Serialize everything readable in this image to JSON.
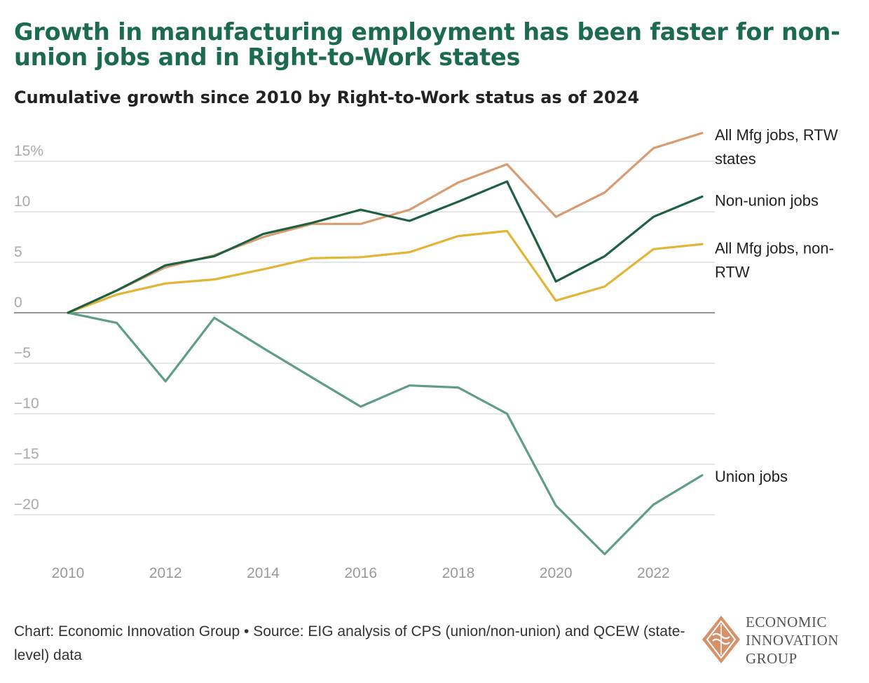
{
  "title": "Growth in manufacturing employment has been faster for non-union jobs and in Right-to-Work states",
  "subtitle": "Cumulative growth since 2010 by Right-to-Work status as of 2024",
  "footer": {
    "credit": "Chart: Economic Innovation Group",
    "separator": " • ",
    "source": "Source: EIG analysis of CPS (union/non-union) and QCEW (state-level) data"
  },
  "logo": {
    "line1": "ECONOMIC",
    "line2": "INNOVATION",
    "line3": "GROUP",
    "colors": {
      "mark": "#d4916a"
    }
  },
  "chart_data": {
    "type": "line",
    "title": "Cumulative growth since 2010 by Right-to-Work status as of 2024",
    "xlabel": "",
    "ylabel": "",
    "x": [
      2010,
      2011,
      2012,
      2013,
      2014,
      2015,
      2016,
      2017,
      2018,
      2019,
      2020,
      2021,
      2022,
      2023
    ],
    "xlim": [
      2010,
      2023
    ],
    "ylim": [
      -24,
      18
    ],
    "x_ticks": [
      {
        "value": 2010,
        "label": "2010"
      },
      {
        "value": 2012,
        "label": "2012"
      },
      {
        "value": 2014,
        "label": "2014"
      },
      {
        "value": 2016,
        "label": "2016"
      },
      {
        "value": 2018,
        "label": "2018"
      },
      {
        "value": 2020,
        "label": "2020"
      },
      {
        "value": 2022,
        "label": "2022"
      }
    ],
    "y_ticks": [
      {
        "value": 15,
        "label": "15%"
      },
      {
        "value": 10,
        "label": "10"
      },
      {
        "value": 5,
        "label": "5"
      },
      {
        "value": 0,
        "label": "0"
      },
      {
        "value": -5,
        "label": "−5"
      },
      {
        "value": -10,
        "label": "−10"
      },
      {
        "value": -15,
        "label": "−15"
      },
      {
        "value": -20,
        "label": "−20"
      }
    ],
    "grid": true,
    "legend": "direct labels at right end of lines",
    "series": [
      {
        "name": "All Mfg jobs, RTW states",
        "label_lines": [
          "All Mfg jobs, RTW",
          "states"
        ],
        "color": "#d89c72",
        "values": [
          0,
          2.2,
          4.5,
          5.7,
          7.5,
          8.8,
          8.8,
          10.2,
          12.9,
          14.7,
          9.5,
          11.9,
          16.3,
          17.8
        ],
        "label_value": 17.7
      },
      {
        "name": "Non-union jobs",
        "label_lines": [
          "Non-union jobs"
        ],
        "color": "#1d6042",
        "values": [
          0,
          2.2,
          4.7,
          5.6,
          7.8,
          8.9,
          10.2,
          9.1,
          11.0,
          13.0,
          3.1,
          5.6,
          9.5,
          11.5
        ],
        "label_value": 11.2
      },
      {
        "name": "All Mfg jobs, non-RTW",
        "label_lines": [
          "All Mfg jobs, non-",
          "RTW"
        ],
        "color": "#e2b536",
        "values": [
          0,
          1.8,
          2.9,
          3.3,
          4.3,
          5.4,
          5.5,
          6.0,
          7.6,
          8.1,
          1.2,
          2.6,
          6.3,
          6.8
        ],
        "label_value": 6.5
      },
      {
        "name": "Union jobs",
        "label_lines": [
          "Union jobs"
        ],
        "color": "#5f9e84",
        "values": [
          0,
          -1.0,
          -6.8,
          -0.5,
          -3.5,
          -6.4,
          -9.3,
          -7.2,
          -7.4,
          -10.0,
          -19.1,
          -23.9,
          -19.0,
          -16.1
        ],
        "label_value": -16.1
      }
    ]
  }
}
